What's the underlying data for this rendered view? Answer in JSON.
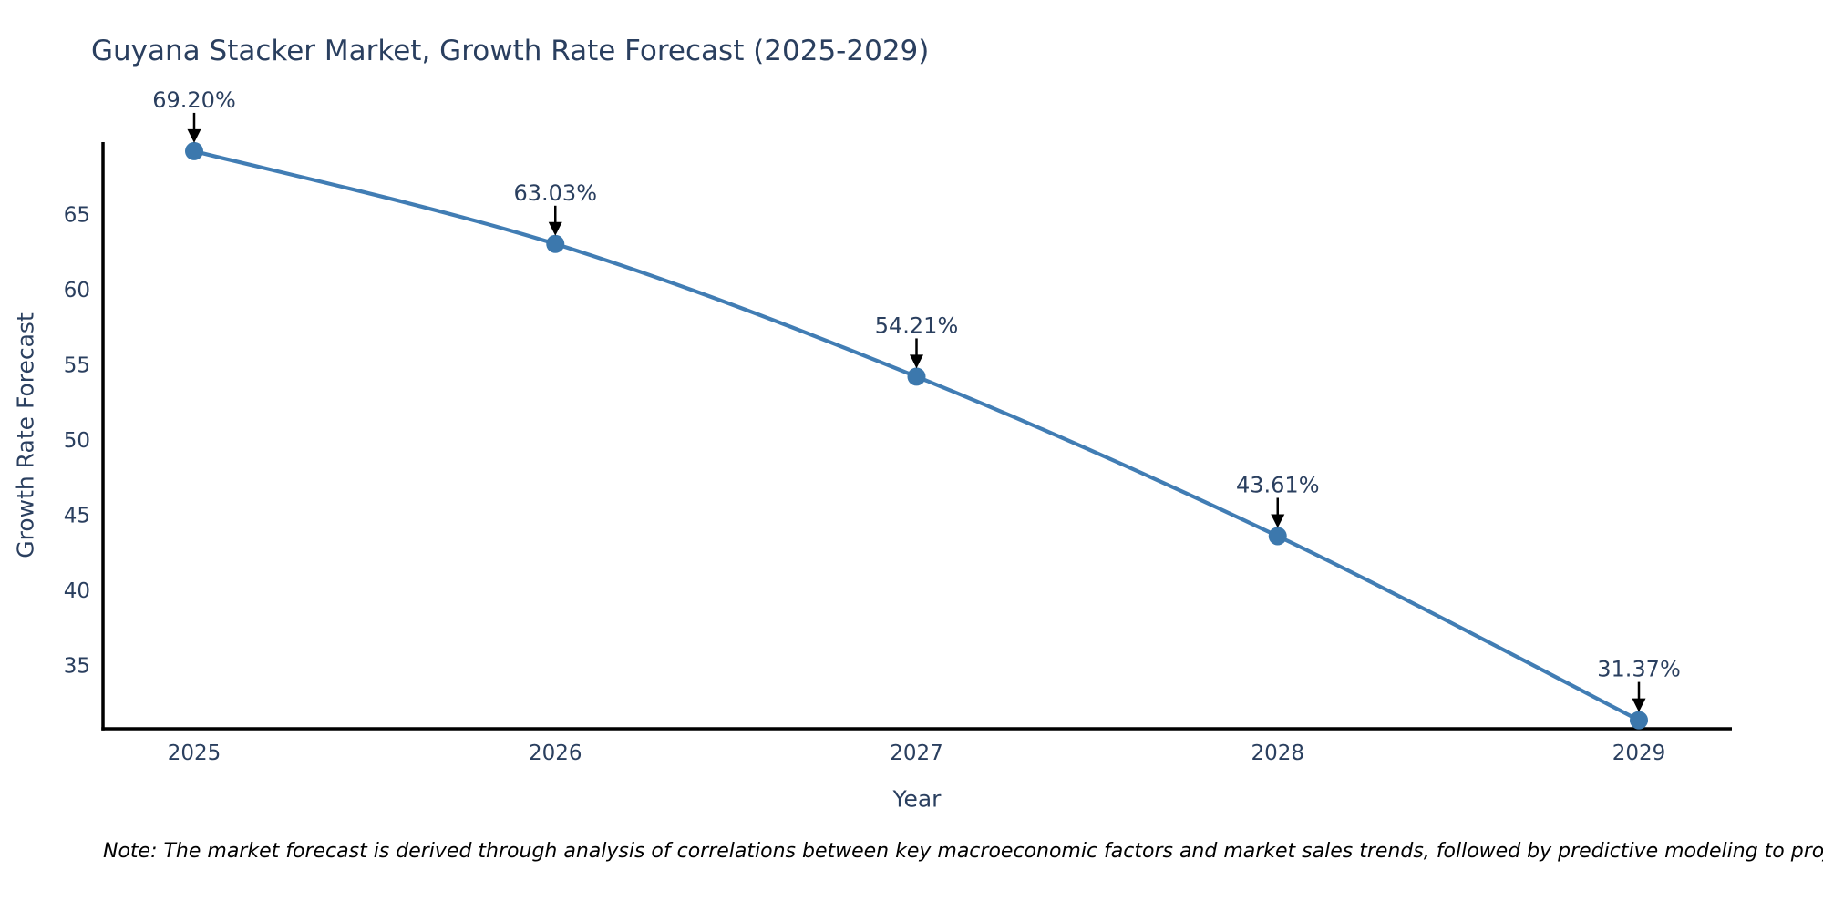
{
  "page": {
    "background": "#ffffff"
  },
  "header": {
    "title": "Guyana Stacker Market, Growth Rate Forecast (2025-2029)"
  },
  "footer": {
    "note": "Note: The market forecast is derived through analysis of correlations between key macroeconomic factors and market sales trends, followed by predictive modeling to project future sales."
  },
  "chart_data": {
    "type": "line",
    "title": "Guyana Stacker Market, Growth Rate Forecast (2025-2029)",
    "xlabel": "Year",
    "ylabel": "Growth Rate Forecast",
    "categories": [
      "2025",
      "2026",
      "2027",
      "2028",
      "2029"
    ],
    "series": [
      {
        "name": "Growth Rate Forecast",
        "values": [
          69.2,
          63.03,
          54.21,
          43.61,
          31.37
        ]
      }
    ],
    "point_labels": [
      "69.20%",
      "63.03%",
      "54.21%",
      "43.61%",
      "31.37%"
    ],
    "yticks": [
      35,
      40,
      45,
      50,
      55,
      60,
      65
    ],
    "ylim": [
      30.8,
      69.8
    ],
    "grid": false,
    "legend_position": "none",
    "line_shape": "spline",
    "colors": {
      "line": "#417db4",
      "marker": "#3c78ad",
      "axis": "#000000",
      "tick_text": "#2a3f5f",
      "annotation_text": "#2a3f5f",
      "arrow": "#000000"
    }
  }
}
